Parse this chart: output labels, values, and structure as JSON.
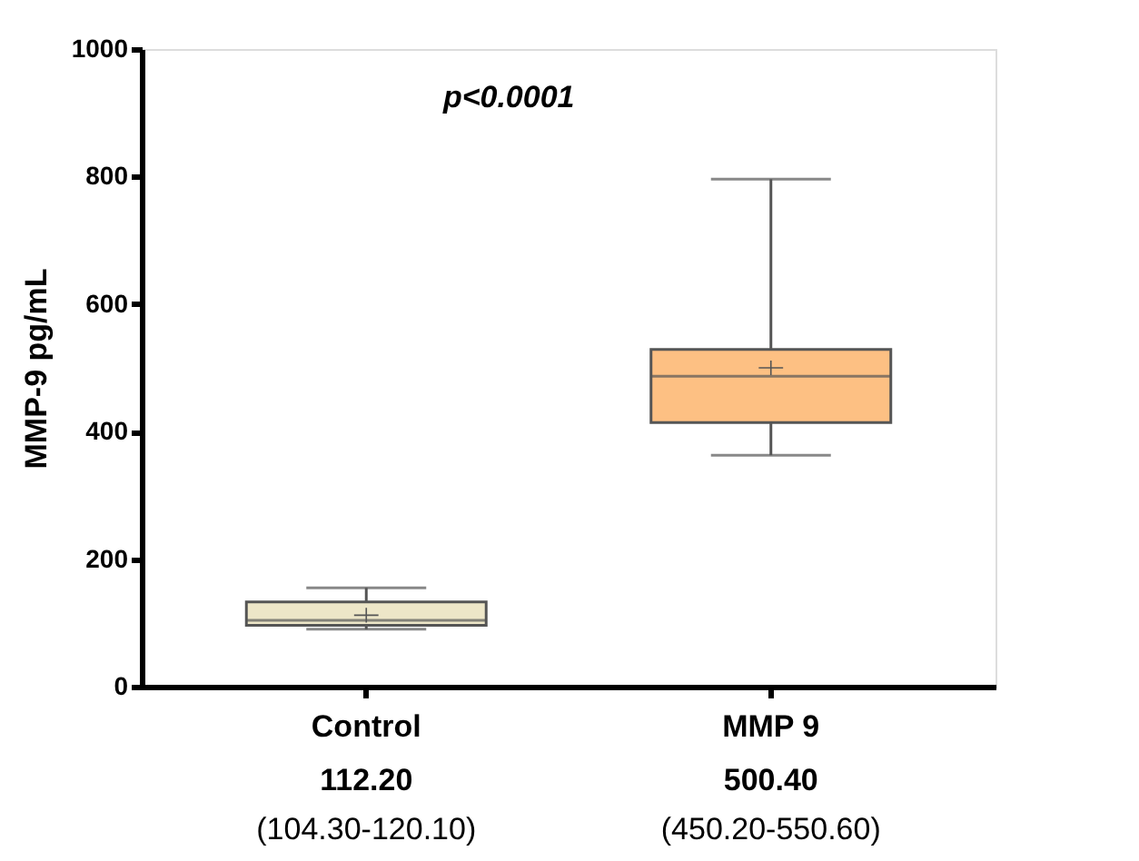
{
  "chart_data": {
    "type": "box",
    "ylabel": "MMP-9 pg/mL",
    "categories": [
      "Control",
      "MMP 9"
    ],
    "boxes": [
      {
        "low": 90,
        "q1": 96,
        "median": 104,
        "q3": 133,
        "high": 155,
        "mean": 112
      },
      {
        "low": 363,
        "q1": 414,
        "median": 487,
        "q3": 529,
        "high": 796,
        "mean": 500
      }
    ],
    "colors": [
      "#ede6c8",
      "#fdc083"
    ],
    "ylim": [
      0,
      1000
    ],
    "yticks": [
      0,
      200,
      400,
      600,
      800,
      1000
    ],
    "grid": false,
    "annotations": [
      "p<0.0001",
      "112.20",
      "(104.30-120.10)",
      "500.40",
      "(450.20-550.60)"
    ]
  }
}
